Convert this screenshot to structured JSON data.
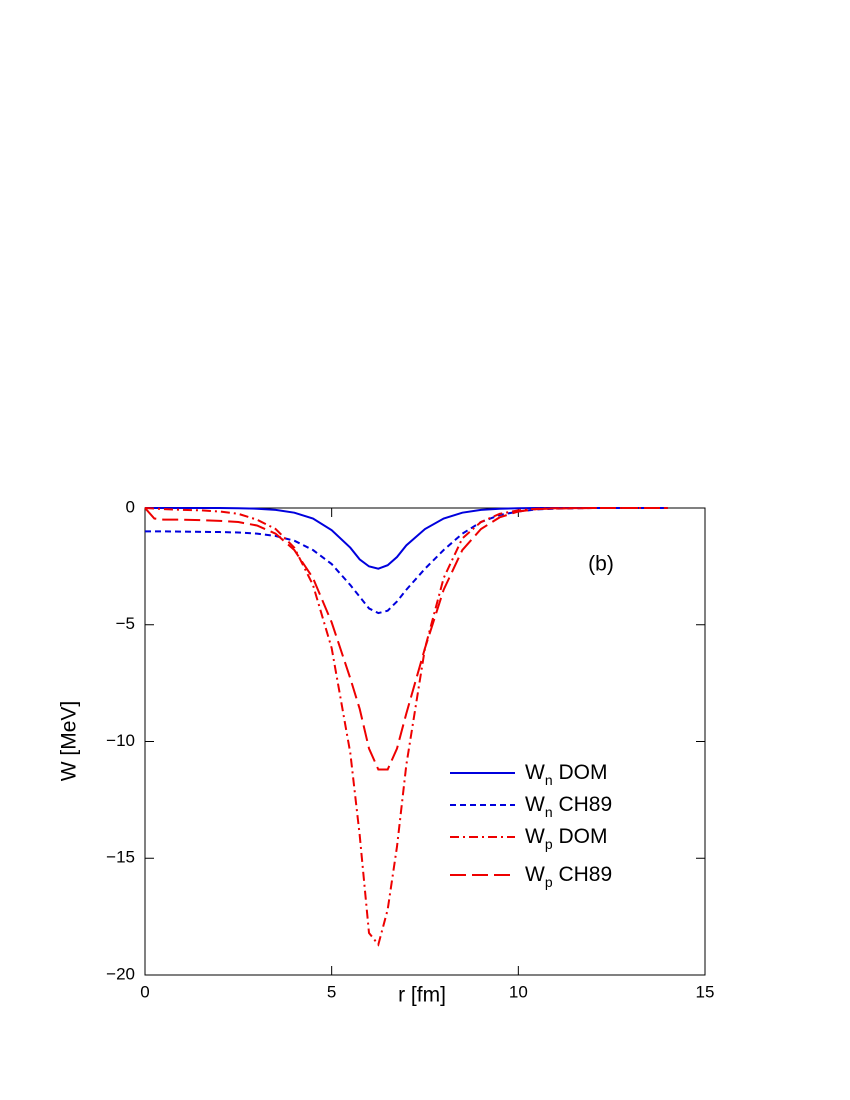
{
  "chart_data": {
    "type": "line",
    "xlabel": "r [fm]",
    "ylabel": "W [MeV]",
    "annotation": "(b)",
    "xlim": [
      0,
      15
    ],
    "ylim": [
      -20,
      0
    ],
    "xticks": [
      0,
      5,
      10,
      15
    ],
    "yticks": [
      {
        "value": -20,
        "label": "−20"
      },
      {
        "value": -15,
        "label": "−15"
      },
      {
        "value": -10,
        "label": "−10"
      },
      {
        "value": -5,
        "label": "−5"
      },
      0
    ],
    "x": [
      0,
      0.25,
      0.5,
      1,
      1.5,
      2,
      2.5,
      3,
      3.5,
      4,
      4.5,
      5,
      5.5,
      5.75,
      6,
      6.25,
      6.5,
      6.75,
      7,
      7.5,
      8,
      8.5,
      9,
      9.5,
      10,
      10.5,
      11,
      12,
      13,
      14
    ],
    "series": [
      {
        "name": "Wn DOM",
        "color": "#0000dd",
        "linestyle": "solid",
        "values": [
          0,
          0,
          0,
          0,
          0,
          0,
          -0.01,
          -0.03,
          -0.08,
          -0.2,
          -0.45,
          -0.95,
          -1.7,
          -2.2,
          -2.5,
          -2.6,
          -2.45,
          -2.1,
          -1.6,
          -0.9,
          -0.45,
          -0.2,
          -0.08,
          -0.03,
          -0.01,
          0,
          0,
          0,
          0,
          0
        ]
      },
      {
        "name": "Wn CH89",
        "color": "#0000dd",
        "linestyle": "dashed",
        "values": [
          -1.0,
          -1.0,
          -1.0,
          -1.01,
          -1.02,
          -1.03,
          -1.05,
          -1.1,
          -1.2,
          -1.4,
          -1.8,
          -2.4,
          -3.3,
          -3.8,
          -4.3,
          -4.5,
          -4.4,
          -4.0,
          -3.5,
          -2.6,
          -1.8,
          -1.1,
          -0.6,
          -0.3,
          -0.15,
          -0.06,
          -0.03,
          0,
          0,
          0
        ]
      },
      {
        "name": "Wp DOM",
        "color": "#ee0000",
        "linestyle": "dashdot",
        "values": [
          0,
          -0.02,
          -0.05,
          -0.08,
          -0.1,
          -0.15,
          -0.25,
          -0.5,
          -0.9,
          -1.7,
          -3.3,
          -6.0,
          -10.5,
          -14,
          -18.2,
          -18.7,
          -17.2,
          -14.5,
          -11,
          -6,
          -3,
          -1.3,
          -0.6,
          -0.25,
          -0.1,
          -0.03,
          -0.01,
          0,
          0,
          0
        ]
      },
      {
        "name": "Wp CH89",
        "color": "#ee0000",
        "linestyle": "longdash",
        "values": [
          0,
          -0.45,
          -0.5,
          -0.5,
          -0.52,
          -0.55,
          -0.6,
          -0.75,
          -1.1,
          -1.8,
          -3.0,
          -4.9,
          -7.3,
          -8.6,
          -10.3,
          -11.2,
          -11.2,
          -10.3,
          -8.8,
          -6.0,
          -3.5,
          -1.8,
          -0.9,
          -0.4,
          -0.15,
          -0.05,
          -0.02,
          0,
          0,
          0
        ]
      }
    ]
  }
}
